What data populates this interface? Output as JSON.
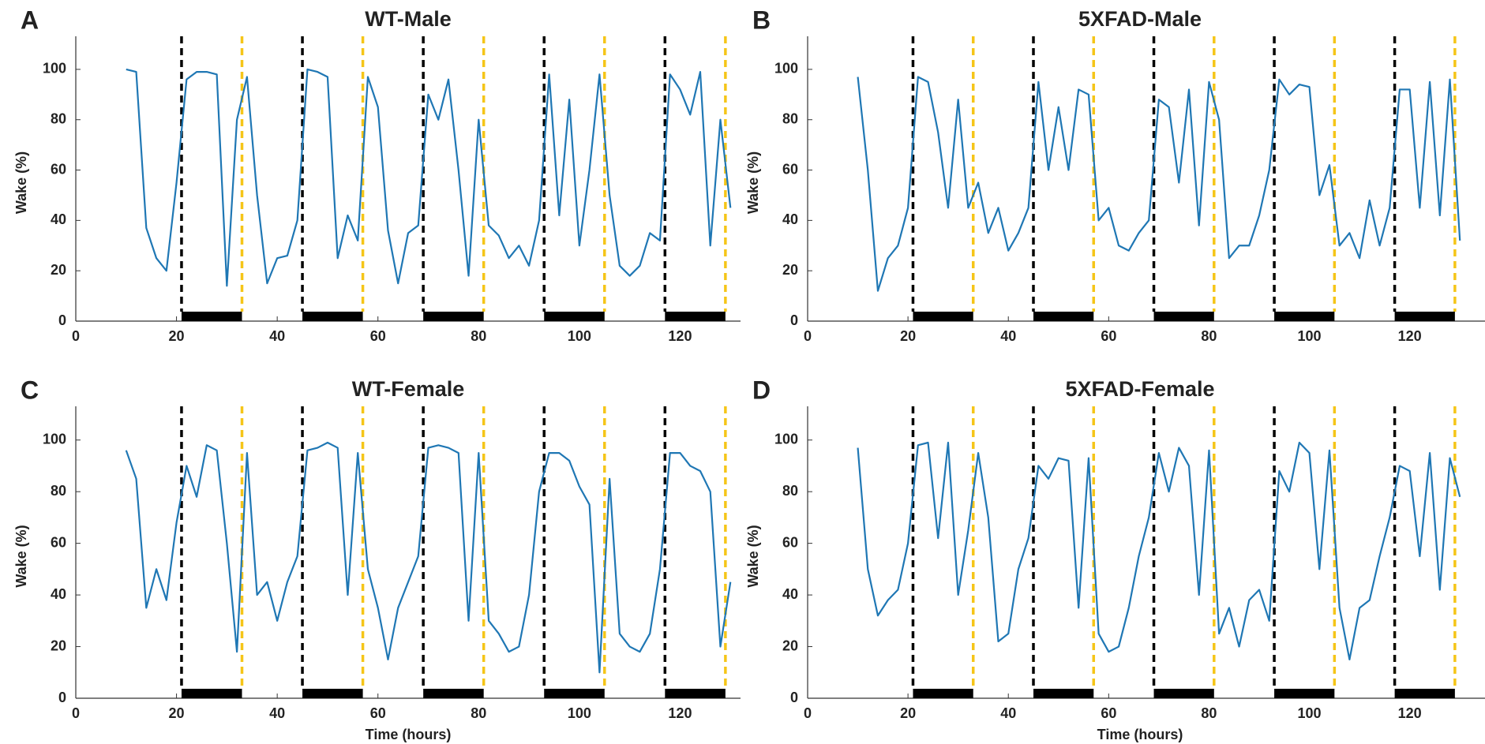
{
  "chart_data": [
    {
      "type": "line",
      "label": "A",
      "title": "WT-Male",
      "y_label": "Wake (%)",
      "color": "#1f77b4",
      "xlim": [
        0,
        132
      ],
      "ylim": [
        0,
        110
      ],
      "xticks": [
        0,
        20,
        40,
        60,
        80,
        100,
        120
      ],
      "yticks": [
        0,
        20,
        40,
        60,
        80,
        100
      ],
      "dark_onsets": [
        21,
        45,
        69,
        93,
        117
      ],
      "dark_offsets": [
        33,
        57,
        81,
        105,
        129
      ],
      "onset_color": "#000000",
      "offset_color": "#f5c518",
      "bar_color": "#000000",
      "x": [
        10,
        12,
        14,
        16,
        18,
        20,
        22,
        24,
        26,
        28,
        30,
        32,
        34,
        36,
        38,
        40,
        42,
        44,
        46,
        48,
        50,
        52,
        54,
        56,
        58,
        60,
        62,
        64,
        66,
        68,
        70,
        72,
        74,
        76,
        78,
        80,
        82,
        84,
        86,
        88,
        90,
        92,
        94,
        96,
        98,
        100,
        102,
        104,
        106,
        108,
        110,
        112,
        114,
        116,
        118,
        120,
        122,
        124,
        126,
        128,
        130
      ],
      "values": [
        100,
        99,
        37,
        25,
        20,
        55,
        96,
        99,
        99,
        98,
        14,
        80,
        97,
        50,
        15,
        25,
        26,
        40,
        100,
        99,
        97,
        25,
        42,
        32,
        97,
        85,
        36,
        15,
        35,
        38,
        90,
        80,
        96,
        60,
        18,
        80,
        38,
        34,
        25,
        30,
        22,
        40,
        98,
        42,
        88,
        30,
        60,
        98,
        50,
        22,
        18,
        22,
        35,
        32,
        98,
        92,
        82,
        99,
        30,
        80,
        45
      ]
    },
    {
      "type": "line",
      "label": "B",
      "title": "5XFAD-Male",
      "y_label": "Wake (%)",
      "color": "#1f77b4",
      "xlim": [
        0,
        135
      ],
      "ylim": [
        0,
        110
      ],
      "xticks": [
        0,
        20,
        40,
        60,
        80,
        100,
        120
      ],
      "yticks": [
        0,
        20,
        40,
        60,
        80,
        100
      ],
      "dark_onsets": [
        21,
        45,
        69,
        93,
        117
      ],
      "dark_offsets": [
        33,
        57,
        81,
        105,
        129
      ],
      "onset_color": "#000000",
      "offset_color": "#f5c518",
      "bar_color": "#000000",
      "x": [
        10,
        12,
        14,
        16,
        18,
        20,
        22,
        24,
        26,
        28,
        30,
        32,
        34,
        36,
        38,
        40,
        42,
        44,
        46,
        48,
        50,
        52,
        54,
        56,
        58,
        60,
        62,
        64,
        66,
        68,
        70,
        72,
        74,
        76,
        78,
        80,
        82,
        84,
        86,
        88,
        90,
        92,
        94,
        96,
        98,
        100,
        102,
        104,
        106,
        108,
        110,
        112,
        114,
        116,
        118,
        120,
        122,
        124,
        126,
        128,
        130
      ],
      "values": [
        97,
        60,
        12,
        25,
        30,
        45,
        97,
        95,
        75,
        45,
        88,
        45,
        55,
        35,
        45,
        28,
        35,
        45,
        95,
        60,
        85,
        60,
        92,
        90,
        40,
        45,
        30,
        28,
        35,
        40,
        88,
        85,
        55,
        92,
        38,
        95,
        80,
        25,
        30,
        30,
        42,
        60,
        96,
        90,
        94,
        93,
        50,
        62,
        30,
        35,
        25,
        48,
        30,
        45,
        92,
        92,
        45,
        95,
        42,
        96,
        32
      ]
    },
    {
      "type": "line",
      "label": "C",
      "title": "WT-Female",
      "y_label": "Wake (%)",
      "x_label": "Time (hours)",
      "color": "#1f77b4",
      "xlim": [
        0,
        132
      ],
      "ylim": [
        0,
        110
      ],
      "xticks": [
        0,
        20,
        40,
        60,
        80,
        100,
        120
      ],
      "yticks": [
        0,
        20,
        40,
        60,
        80,
        100
      ],
      "dark_onsets": [
        21,
        45,
        69,
        93,
        117
      ],
      "dark_offsets": [
        33,
        57,
        81,
        105,
        129
      ],
      "onset_color": "#000000",
      "offset_color": "#f5c518",
      "bar_color": "#000000",
      "x": [
        10,
        12,
        14,
        16,
        18,
        20,
        22,
        24,
        26,
        28,
        30,
        32,
        34,
        36,
        38,
        40,
        42,
        44,
        46,
        48,
        50,
        52,
        54,
        56,
        58,
        60,
        62,
        64,
        66,
        68,
        70,
        72,
        74,
        76,
        78,
        80,
        82,
        84,
        86,
        88,
        90,
        92,
        94,
        96,
        98,
        100,
        102,
        104,
        106,
        108,
        110,
        112,
        114,
        116,
        118,
        120,
        122,
        124,
        126,
        128,
        130
      ],
      "values": [
        96,
        85,
        35,
        50,
        38,
        68,
        90,
        78,
        98,
        96,
        60,
        18,
        95,
        40,
        45,
        30,
        45,
        55,
        96,
        97,
        99,
        97,
        40,
        95,
        50,
        35,
        15,
        35,
        45,
        55,
        97,
        98,
        97,
        95,
        30,
        95,
        30,
        25,
        18,
        20,
        40,
        80,
        95,
        95,
        92,
        82,
        75,
        10,
        85,
        25,
        20,
        18,
        25,
        50,
        95,
        95,
        90,
        88,
        80,
        20,
        45
      ]
    },
    {
      "type": "line",
      "label": "D",
      "title": "5XFAD-Female",
      "y_label": "Wake (%)",
      "x_label": "Time (hours)",
      "color": "#1f77b4",
      "xlim": [
        0,
        135
      ],
      "ylim": [
        0,
        110
      ],
      "xticks": [
        0,
        20,
        40,
        60,
        80,
        100,
        120
      ],
      "yticks": [
        0,
        20,
        40,
        60,
        80,
        100
      ],
      "dark_onsets": [
        21,
        45,
        69,
        93,
        117
      ],
      "dark_offsets": [
        33,
        57,
        81,
        105,
        129
      ],
      "onset_color": "#000000",
      "offset_color": "#f5c518",
      "bar_color": "#000000",
      "x": [
        10,
        12,
        14,
        16,
        18,
        20,
        22,
        24,
        26,
        28,
        30,
        32,
        34,
        36,
        38,
        40,
        42,
        44,
        46,
        48,
        50,
        52,
        54,
        56,
        58,
        60,
        62,
        64,
        66,
        68,
        70,
        72,
        74,
        76,
        78,
        80,
        82,
        84,
        86,
        88,
        90,
        92,
        94,
        96,
        98,
        100,
        102,
        104,
        106,
        108,
        110,
        112,
        114,
        116,
        118,
        120,
        122,
        124,
        126,
        128,
        130
      ],
      "values": [
        97,
        50,
        32,
        38,
        42,
        60,
        98,
        99,
        62,
        99,
        40,
        65,
        95,
        70,
        22,
        25,
        50,
        62,
        90,
        85,
        93,
        92,
        35,
        93,
        25,
        18,
        20,
        35,
        55,
        70,
        95,
        80,
        97,
        90,
        40,
        96,
        25,
        35,
        20,
        38,
        42,
        30,
        88,
        80,
        99,
        95,
        50,
        96,
        35,
        15,
        35,
        38,
        55,
        70,
        90,
        88,
        55,
        95,
        42,
        93,
        78
      ]
    }
  ]
}
